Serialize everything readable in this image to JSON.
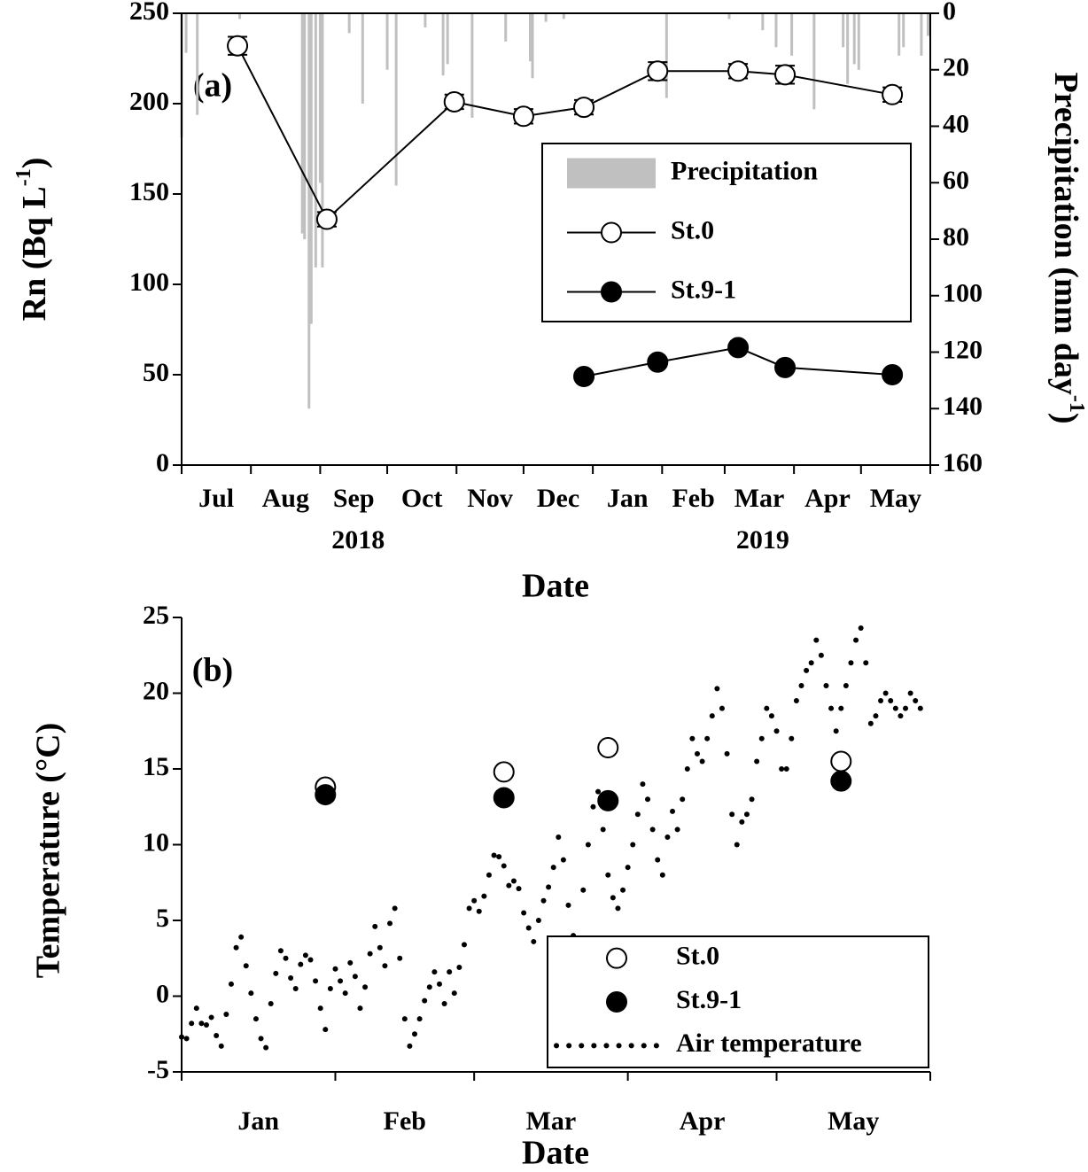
{
  "chart_data": [
    {
      "type": "line",
      "panel_label": "(a)",
      "x_label": "Date",
      "y_label": "Rn (Bq L",
      "y_label_sup": "-1",
      "y_label_end": ")",
      "y2_label": "Precipitation (mm day",
      "y2_label_sup": "-1",
      "y2_label_end": ")",
      "xlim": [
        0,
        335
      ],
      "xticks": [
        0,
        31,
        62,
        92,
        123,
        153,
        184,
        215,
        243,
        274,
        304,
        335
      ],
      "month_labels": [
        {
          "value": 15.5,
          "label": "Jul"
        },
        {
          "value": 46.5,
          "label": "Aug"
        },
        {
          "value": 77,
          "label": "Sep"
        },
        {
          "value": 107.5,
          "label": "Oct"
        },
        {
          "value": 138,
          "label": "Nov"
        },
        {
          "value": 168.5,
          "label": "Dec"
        },
        {
          "value": 199.5,
          "label": "Jan"
        },
        {
          "value": 229,
          "label": "Feb"
        },
        {
          "value": 258.5,
          "label": "Mar"
        },
        {
          "value": 289,
          "label": "Apr"
        },
        {
          "value": 319.5,
          "label": "May"
        }
      ],
      "year_labels": [
        {
          "value": 79,
          "label": "2018"
        },
        {
          "value": 260,
          "label": "2019"
        }
      ],
      "ylim": [
        0,
        250
      ],
      "yticks": [
        0,
        50,
        100,
        150,
        200,
        250
      ],
      "y2lim": [
        0,
        160
      ],
      "y2ticks": [
        0,
        20,
        40,
        60,
        80,
        100,
        120,
        140,
        160
      ],
      "y2_inverted": true,
      "legend": "upper right",
      "series": [
        {
          "name": "Precipitation",
          "type": "bar",
          "axis": "y2",
          "color": "#c0c0c0",
          "x": [
            0,
            2,
            7,
            26,
            54,
            55,
            57,
            58,
            60,
            62,
            63,
            75,
            81,
            92,
            96,
            109,
            117,
            119,
            130,
            145,
            156,
            157,
            163,
            171,
            217,
            245,
            260,
            266,
            273,
            283,
            296,
            298,
            301,
            303,
            321,
            323,
            331,
            334
          ],
          "values": [
            44,
            14,
            36,
            2,
            78,
            80,
            140,
            110,
            90,
            60,
            90,
            7,
            32,
            20,
            61,
            5,
            22,
            18,
            37,
            10,
            17,
            23,
            3,
            2,
            30,
            2,
            6,
            12,
            15,
            34,
            12,
            25,
            18,
            20,
            15,
            12,
            15,
            8
          ]
        },
        {
          "name": "St.0",
          "type": "line",
          "color": "#000000",
          "marker": "open",
          "x": [
            25,
            65,
            122,
            153,
            180,
            213,
            249,
            270,
            318
          ],
          "values": [
            232,
            136,
            201,
            193,
            198,
            218,
            218,
            216,
            205
          ],
          "errors": [
            5,
            4,
            4,
            4,
            4,
            5,
            4,
            5,
            4
          ]
        },
        {
          "name": "St.9-1",
          "type": "line",
          "color": "#000000",
          "marker": "filled",
          "x": [
            180,
            213,
            249,
            270,
            318
          ],
          "values": [
            49,
            57,
            65,
            54,
            50
          ]
        }
      ]
    },
    {
      "type": "scatter",
      "panel_label": "(b)",
      "x_label": "Date",
      "y_label": "Temperature (°C)",
      "xlim": [
        0,
        151
      ],
      "xticks": [
        0,
        31,
        59,
        90,
        120,
        151
      ],
      "month_labels": [
        {
          "value": 15.5,
          "label": "Jan"
        },
        {
          "value": 45,
          "label": "Feb"
        },
        {
          "value": 74.5,
          "label": "Mar"
        },
        {
          "value": 105,
          "label": "Apr"
        },
        {
          "value": 135.5,
          "label": "May"
        }
      ],
      "ylim": [
        -5,
        25
      ],
      "yticks": [
        -5,
        0,
        5,
        10,
        15,
        20,
        25
      ],
      "legend": "lower right",
      "series": [
        {
          "name": "St.0",
          "type": "scatter",
          "color": "#000000",
          "marker": "open",
          "x": [
            29,
            65,
            86,
            133
          ],
          "values": [
            13.8,
            14.8,
            16.4,
            15.5
          ]
        },
        {
          "name": "St.9-1",
          "type": "scatter",
          "color": "#000000",
          "marker": "filled",
          "x": [
            29,
            65,
            86,
            133
          ],
          "values": [
            13.3,
            13.1,
            12.9,
            14.2
          ]
        },
        {
          "name": "Air temperature",
          "type": "dots",
          "color": "#000000",
          "x": [
            0,
            1,
            2,
            3,
            4,
            5,
            6,
            7,
            8,
            9,
            10,
            11,
            12,
            13,
            14,
            15,
            16,
            17,
            18,
            19,
            20,
            21,
            22,
            23,
            24,
            25,
            26,
            27,
            28,
            29,
            30,
            31,
            32,
            33,
            34,
            35,
            36,
            37,
            38,
            39,
            40,
            41,
            42,
            43,
            44,
            45,
            46,
            47,
            48,
            49,
            50,
            51,
            52,
            53,
            54,
            55,
            56,
            57,
            58,
            59,
            60,
            61,
            62,
            63,
            64,
            65,
            66,
            67,
            68,
            69,
            70,
            71,
            72,
            73,
            74,
            75,
            76,
            77,
            78,
            79,
            80,
            81,
            82,
            83,
            84,
            85,
            86,
            87,
            88,
            89,
            90,
            91,
            92,
            93,
            94,
            95,
            96,
            97,
            98,
            99,
            100,
            101,
            102,
            103,
            104,
            105,
            106,
            107,
            108,
            109,
            110,
            111,
            112,
            113,
            114,
            115,
            116,
            117,
            118,
            119,
            120,
            121,
            122,
            123,
            124,
            125,
            126,
            127,
            128,
            129,
            130,
            131,
            132,
            133,
            134,
            135,
            136,
            137,
            138,
            139,
            140,
            141,
            142,
            143,
            144,
            145,
            146,
            147,
            148,
            149
          ],
          "values": [
            -2.7,
            -2.8,
            -1.8,
            -0.8,
            -1.8,
            -1.9,
            -1.4,
            -2.6,
            -3.3,
            -1.2,
            0.8,
            3.2,
            3.9,
            2.0,
            0.2,
            -1.5,
            -2.8,
            -3.4,
            -0.5,
            1.5,
            3.0,
            2.5,
            1.2,
            0.5,
            2.1,
            2.7,
            2.4,
            1.0,
            -0.8,
            -2.2,
            0.5,
            1.8,
            1.0,
            0.2,
            2.2,
            1.3,
            -0.8,
            0.6,
            2.8,
            4.6,
            3.2,
            2.0,
            4.8,
            5.8,
            2.5,
            -1.5,
            -3.3,
            -2.5,
            -1.5,
            -0.3,
            0.6,
            1.6,
            0.8,
            -0.5,
            1.6,
            0.2,
            1.9,
            3.4,
            5.8,
            6.3,
            5.6,
            6.6,
            8.0,
            9.3,
            9.2,
            8.6,
            7.3,
            7.6,
            7.1,
            5.5,
            4.5,
            3.6,
            5.0,
            6.3,
            7.2,
            8.5,
            10.5,
            9.0,
            6.0,
            4.0,
            3.7,
            7.0,
            10.0,
            12.5,
            13.5,
            11.0,
            8.0,
            6.5,
            5.8,
            7.0,
            8.5,
            10.0,
            12.0,
            14.0,
            13.0,
            11.0,
            9.0,
            8.0,
            10.5,
            12.2,
            11.0,
            13.0,
            15.0,
            17.0,
            16.0,
            15.5,
            17.0,
            18.5,
            20.3,
            19.0,
            16.0,
            12.0,
            10.0,
            11.5,
            12.0,
            13.0,
            15.5,
            17.0,
            19.0,
            18.5,
            17.5,
            15.0,
            15.0,
            17.0,
            19.5,
            20.5,
            21.5,
            22.0,
            23.5,
            22.5,
            20.5,
            19.0,
            17.5,
            19.0,
            20.5,
            22.0,
            23.5,
            24.3,
            22.0,
            18.0,
            18.5,
            19.5,
            20.0,
            19.5,
            19.0,
            18.5,
            19.0,
            20.0,
            19.5,
            19.0
          ]
        }
      ]
    }
  ]
}
